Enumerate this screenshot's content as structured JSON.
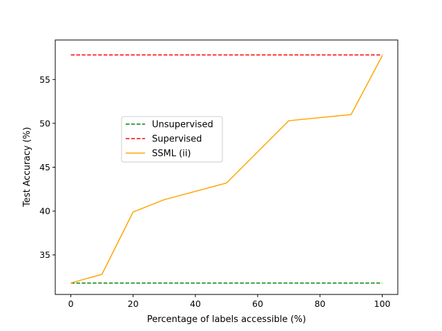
{
  "chart_data": {
    "type": "line",
    "title": "",
    "xlabel": "Percentage of labels accessible (%)",
    "ylabel": "Test Accuracy (%)",
    "xlim": [
      -5,
      105
    ],
    "ylim": [
      30.5,
      59.5
    ],
    "xticks": [
      0,
      20,
      40,
      60,
      80,
      100
    ],
    "yticks": [
      35,
      40,
      45,
      50,
      55
    ],
    "grid": false,
    "legend_position": "center-left",
    "series": [
      {
        "name": "Unsupervised",
        "style": "dashed",
        "color": "#008000",
        "x": [
          0,
          100
        ],
        "y": [
          31.8,
          31.8
        ]
      },
      {
        "name": "Supervised",
        "style": "dashed",
        "color": "#ff0000",
        "x": [
          0,
          100
        ],
        "y": [
          57.8,
          57.8
        ]
      },
      {
        "name": "SSML (ii)",
        "style": "solid",
        "color": "#ffa500",
        "x": [
          0,
          10,
          20,
          30,
          50,
          70,
          90,
          100
        ],
        "y": [
          31.8,
          32.8,
          39.9,
          41.3,
          43.2,
          50.3,
          51.0,
          57.7
        ]
      }
    ]
  }
}
